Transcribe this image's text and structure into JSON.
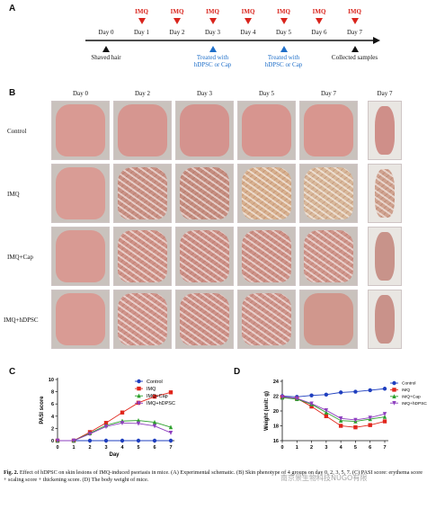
{
  "panel_letters": {
    "a": "A",
    "b": "B",
    "c": "C",
    "d": "D"
  },
  "timeline": {
    "days": [
      "Day 0",
      "Day 1",
      "Day 2",
      "Day 3",
      "Day 4",
      "Day 5",
      "Day 6",
      "Day 7"
    ],
    "imq_label": "IMQ",
    "imq_days": [
      1,
      2,
      3,
      4,
      5,
      6,
      7
    ],
    "events": [
      {
        "day": 0,
        "text": "Shaved hair",
        "color": "#111111"
      },
      {
        "day": 3,
        "text": "Treated with hDPSC or Cap",
        "color": "#1f6fc9"
      },
      {
        "day": 5,
        "text": "Treated with hDPSC or Cap",
        "color": "#1f6fc9"
      },
      {
        "day": 7,
        "text": "Collected samples",
        "color": "#111111"
      }
    ]
  },
  "photo_grid": {
    "columns": [
      "Day 0",
      "Day 2",
      "Day 3",
      "Day 5",
      "Day 7",
      "Day 7"
    ],
    "rows": [
      "Control",
      "IMQ",
      "IMQ+Cap",
      "IMQ+hDPSC"
    ],
    "skin_colors": [
      [
        "#d99a93",
        "#d69690",
        "#d4938e",
        "#d7958f",
        "#d8968f",
        "#cf8f89"
      ],
      [
        "#d99c95",
        "#c99185",
        "#c58d80",
        "#d7b08e",
        "#d8b89a",
        "#cfa28f"
      ],
      [
        "#d89a93",
        "#cf9288",
        "#cc8f86",
        "#cd9187",
        "#cf958b",
        "#c8938a"
      ],
      [
        "#d99b94",
        "#d0948b",
        "#cd9188",
        "#ce948b",
        "#d0978d",
        "#c9928a"
      ]
    ],
    "scaling": [
      [
        false,
        false,
        false,
        false,
        false,
        false
      ],
      [
        false,
        true,
        true,
        true,
        true,
        true
      ],
      [
        false,
        true,
        true,
        true,
        true,
        false
      ],
      [
        false,
        true,
        true,
        true,
        false,
        false
      ]
    ]
  },
  "chart_data": [
    {
      "type": "line",
      "panel": "C",
      "title": "",
      "xlabel": "Day",
      "ylabel": "PASI score",
      "x": [
        0,
        1,
        2,
        3,
        4,
        5,
        6,
        7
      ],
      "xlim": [
        0,
        7
      ],
      "ylim": [
        0,
        10
      ],
      "yticks": [
        0,
        2,
        4,
        6,
        8,
        10
      ],
      "legend": "top-right",
      "series": [
        {
          "name": "Control",
          "color": "#1f3fbf",
          "marker": "circle",
          "values": [
            0,
            0,
            0,
            0,
            0,
            0,
            0,
            0
          ]
        },
        {
          "name": "IMQ",
          "color": "#e0261c",
          "marker": "square",
          "values": [
            0,
            0,
            1.4,
            2.9,
            4.6,
            6.2,
            7.2,
            7.9
          ]
        },
        {
          "name": "IMQ+Cap",
          "color": "#2ca02c",
          "marker": "triangle",
          "values": [
            0,
            0,
            1.2,
            2.5,
            3.2,
            3.3,
            3.0,
            2.2
          ]
        },
        {
          "name": "IMQ+hDPSC",
          "color": "#8e3fbf",
          "marker": "triangle-down",
          "values": [
            0,
            0,
            1.1,
            2.3,
            2.9,
            2.8,
            2.4,
            1.3
          ]
        }
      ]
    },
    {
      "type": "line",
      "panel": "D",
      "title": "",
      "xlabel": "",
      "ylabel": "Weight (unit: g)",
      "x": [
        0,
        1,
        2,
        3,
        4,
        5,
        6,
        7
      ],
      "xlim": [
        0,
        7
      ],
      "ylim": [
        16,
        24
      ],
      "yticks": [
        16,
        18,
        20,
        22,
        24
      ],
      "legend": "top-right",
      "series": [
        {
          "name": "Control",
          "color": "#1f3fbf",
          "marker": "circle",
          "values": [
            22.0,
            21.9,
            22.1,
            22.2,
            22.5,
            22.6,
            22.8,
            23.0
          ]
        },
        {
          "name": "IMQ",
          "color": "#e0261c",
          "marker": "square",
          "values": [
            21.9,
            21.7,
            20.6,
            19.3,
            18.0,
            17.8,
            18.1,
            18.6
          ]
        },
        {
          "name": "IMQ+Cap",
          "color": "#2ca02c",
          "marker": "triangle",
          "values": [
            21.8,
            21.6,
            20.9,
            19.8,
            18.7,
            18.6,
            18.9,
            19.2
          ]
        },
        {
          "name": "IMQ+hDPSC",
          "color": "#8e3fbf",
          "marker": "triangle-down",
          "values": [
            21.9,
            21.7,
            21.0,
            20.1,
            19.0,
            18.8,
            19.1,
            19.6
          ]
        }
      ]
    }
  ],
  "caption": {
    "figno": "Fig. 2.",
    "text": "Effect of hDPSC on skin lesions of IMQ-induced psoriasis in mice. (A) Experimental schematic. (B) Skin phenotype of 4 groups on day 0, 2, 3, 5, 7. (C) PASI score: erythema score + scaling score + thickening score. (D) The body weight of mice."
  },
  "watermark": "南京景生物科技NUGO有限"
}
